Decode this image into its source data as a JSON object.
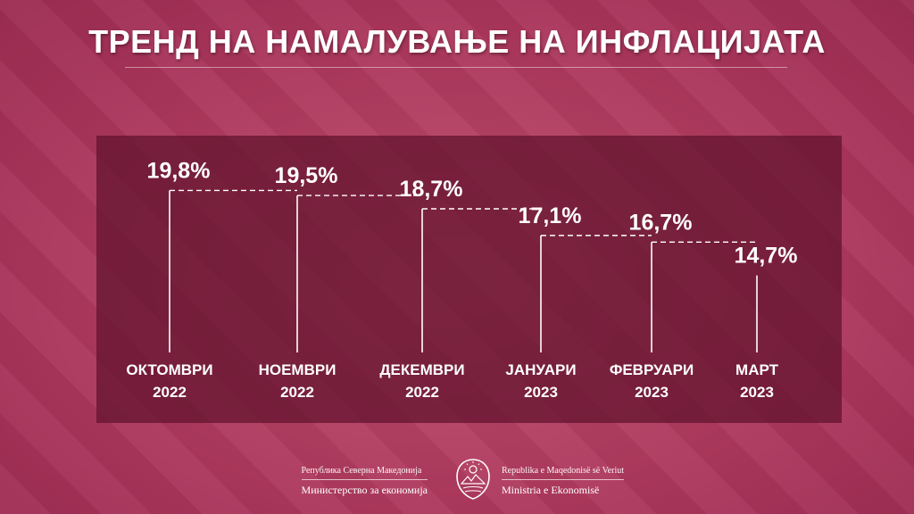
{
  "title": "ТРЕНД НА НАМАЛУВАЊЕ НА ИНФЛАЦИЈАТА",
  "colors": {
    "background": "#b23c5d",
    "panel": "#60122c",
    "text": "#ffffff"
  },
  "chart_data": {
    "type": "line",
    "title": "ТРЕНД НА НАМАЛУВАЊЕ НА ИНФЛАЦИЈАТА",
    "xlabel": "",
    "ylabel": "",
    "unit": "%",
    "categories": [
      [
        "ОКТОМВРИ",
        "2022"
      ],
      [
        "НОЕМВРИ",
        "2022"
      ],
      [
        "ДЕКЕМВРИ",
        "2022"
      ],
      [
        "ЈАНУАРИ",
        "2023"
      ],
      [
        "ФЕВРУАРИ",
        "2023"
      ],
      [
        "МАРТ",
        "2023"
      ]
    ],
    "values": [
      19.8,
      19.5,
      18.7,
      17.1,
      16.7,
      14.7
    ],
    "value_labels": [
      "19,8%",
      "19,5%",
      "18,7%",
      "17,1%",
      "16,7%",
      "14,7%"
    ],
    "ylim": [
      14.2,
      20.2
    ],
    "grid": false,
    "legend": "none"
  },
  "footer": {
    "left_small": "Република Северна Македонија",
    "left_big": "Министерство за економија",
    "right_small": "Republika e Maqedonisë së Veriut",
    "right_big": "Ministria e Ekonomisë"
  },
  "icons": {
    "emblem": "coat-of-arms-icon"
  }
}
